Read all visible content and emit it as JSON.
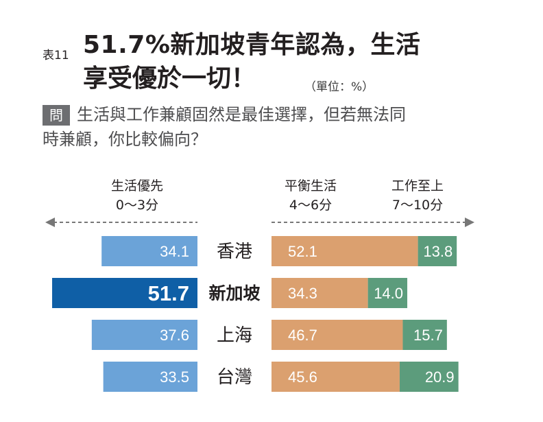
{
  "header": {
    "table_label": "表11",
    "title_line1": "51.7%新加坡青年認為，生活",
    "title_line2": "享受優於一切！",
    "unit": "（單位：%）"
  },
  "question": {
    "badge": "問",
    "line1": "生活與工作兼顧固然是最佳選擇，但若無法同",
    "line2": "時兼顧，你比較偏向？"
  },
  "chart_data": {
    "type": "bar",
    "subtype": "diverging-stacked-horizontal",
    "categories": [
      "香港",
      "新加坡",
      "上海",
      "台灣"
    ],
    "highlight_category": "新加坡",
    "groups": [
      {
        "name": "生活優先",
        "range": "0〜3分",
        "side": "left"
      },
      {
        "name": "平衡生活",
        "range": "4〜6分",
        "side": "right"
      },
      {
        "name": "工作至上",
        "range": "7〜10分",
        "side": "right"
      }
    ],
    "series": [
      {
        "name": "生活優先",
        "values": [
          34.1,
          51.7,
          37.6,
          33.5
        ],
        "labels": [
          "34.1",
          "51.7",
          "37.6",
          "33.5"
        ]
      },
      {
        "name": "平衡生活",
        "values": [
          52.1,
          34.3,
          46.7,
          45.6
        ],
        "labels": [
          "52.1",
          "34.3",
          "46.7",
          "45.6"
        ]
      },
      {
        "name": "工作至上",
        "values": [
          13.8,
          14.0,
          15.7,
          20.9
        ],
        "labels": [
          "13.8",
          "14.0",
          "15.7",
          "20.9"
        ]
      }
    ],
    "colors": {
      "life_first": "#6ba3d8",
      "life_first_highlight": "#0f5fa6",
      "balance": "#dba06f",
      "work_first": "#5c9c7c",
      "arrow": "#777777"
    }
  }
}
